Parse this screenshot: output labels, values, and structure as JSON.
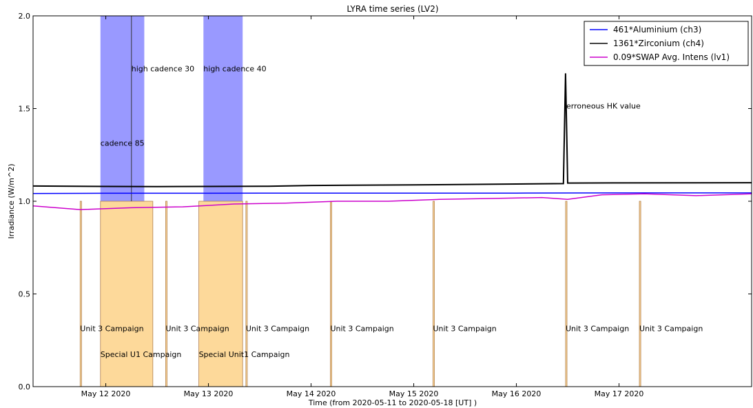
{
  "chart_data": {
    "type": "line",
    "title": "LYRA time series (LV2)",
    "xlabel": "Time (from 2020-05-11 to 2020-05-18 [UT] )",
    "ylabel": "Irradiance (W/m^2)",
    "xlim": [
      "2020-05-11T07:00",
      "2020-05-18T07:00"
    ],
    "ylim": [
      0,
      2.0
    ],
    "yticks": [
      0.0,
      0.5,
      1.0,
      1.5,
      2.0
    ],
    "ytick_labels": [
      "0.0",
      "0.5",
      "1.0",
      "1.5",
      "2.0"
    ],
    "xticks": [
      "2020-05-12T00:00",
      "2020-05-13T00:00",
      "2020-05-14T00:00",
      "2020-05-15T00:00",
      "2020-05-16T00:00",
      "2020-05-17T00:00"
    ],
    "xtick_labels": [
      "May 12 2020",
      "May 13 2020",
      "May 14 2020",
      "May 15 2020",
      "May 16 2020",
      "May 17 2020"
    ],
    "legend_position": "top-right",
    "grid": false,
    "series": [
      {
        "name": "461*Aluminium (ch3)",
        "color": "#0000ff",
        "x": [
          "2020-05-11T07:00",
          "2020-05-12T00:00",
          "2020-05-13T00:00",
          "2020-05-14T00:00",
          "2020-05-15T00:00",
          "2020-05-16T00:00",
          "2020-05-17T00:00",
          "2020-05-18T07:00"
        ],
        "y": [
          1.042,
          1.043,
          1.043,
          1.044,
          1.044,
          1.044,
          1.045,
          1.045
        ]
      },
      {
        "name": "1361*Zirconium (ch4)",
        "color": "#000000",
        "x": [
          "2020-05-11T07:00",
          "2020-05-12T00:00",
          "2020-05-12T12:00",
          "2020-05-13T00:00",
          "2020-05-13T14:00",
          "2020-05-14T00:00",
          "2020-05-15T00:00",
          "2020-05-16T00:00",
          "2020-05-16T11:00",
          "2020-05-16T11:30",
          "2020-05-16T12:00",
          "2020-05-17T00:00",
          "2020-05-18T07:00"
        ],
        "y": [
          1.082,
          1.08,
          1.079,
          1.08,
          1.081,
          1.085,
          1.088,
          1.093,
          1.095,
          1.69,
          1.098,
          1.099,
          1.1
        ]
      },
      {
        "name": "0.09*SWAP Avg. Intens (lv1)",
        "color": "#cc00cc",
        "x": [
          "2020-05-11T07:00",
          "2020-05-11T18:00",
          "2020-05-12T06:00",
          "2020-05-12T18:00",
          "2020-05-13T06:00",
          "2020-05-13T18:00",
          "2020-05-14T06:00",
          "2020-05-14T18:00",
          "2020-05-15T06:00",
          "2020-05-15T18:00",
          "2020-05-16T06:00",
          "2020-05-16T12:00",
          "2020-05-16T20:00",
          "2020-05-17T06:00",
          "2020-05-17T18:00",
          "2020-05-18T07:00"
        ],
        "y": [
          0.975,
          0.955,
          0.965,
          0.97,
          0.985,
          0.99,
          1.0,
          1.0,
          1.01,
          1.015,
          1.02,
          1.01,
          1.035,
          1.04,
          1.03,
          1.04
        ]
      }
    ],
    "spans": [
      {
        "kind": "high-cadence",
        "color": "#9999ff",
        "start": "2020-05-11T22:45",
        "end": "2020-05-12T09:00",
        "ymin": 1.0,
        "ymax": 2.0
      },
      {
        "kind": "high-cadence",
        "color": "#9999ff",
        "start": "2020-05-12T22:50",
        "end": "2020-05-13T08:00",
        "ymin": 1.0,
        "ymax": 2.0
      },
      {
        "kind": "campaign",
        "color": "#fdd99a",
        "start": "2020-05-11T18:00",
        "end": "2020-05-11T18:20",
        "ymin": 0.0,
        "ymax": 1.0
      },
      {
        "kind": "campaign",
        "color": "#fdd99a",
        "start": "2020-05-11T22:45",
        "end": "2020-05-12T11:00",
        "ymin": 0.0,
        "ymax": 1.0
      },
      {
        "kind": "campaign",
        "color": "#fdd99a",
        "start": "2020-05-12T14:00",
        "end": "2020-05-12T14:20",
        "ymin": 0.0,
        "ymax": 1.0
      },
      {
        "kind": "campaign",
        "color": "#fdd99a",
        "start": "2020-05-12T21:45",
        "end": "2020-05-13T08:00",
        "ymin": 0.0,
        "ymax": 1.0
      },
      {
        "kind": "campaign",
        "color": "#fdd99a",
        "start": "2020-05-13T08:45",
        "end": "2020-05-13T09:05",
        "ymin": 0.0,
        "ymax": 1.0
      },
      {
        "kind": "campaign",
        "color": "#fdd99a",
        "start": "2020-05-14T04:30",
        "end": "2020-05-14T04:50",
        "ymin": 0.0,
        "ymax": 1.0
      },
      {
        "kind": "campaign",
        "color": "#fdd99a",
        "start": "2020-05-15T04:30",
        "end": "2020-05-15T04:50",
        "ymin": 0.0,
        "ymax": 1.0
      },
      {
        "kind": "campaign",
        "color": "#fdd99a",
        "start": "2020-05-16T11:30",
        "end": "2020-05-16T11:50",
        "ymin": 0.0,
        "ymax": 1.0
      },
      {
        "kind": "campaign",
        "color": "#fdd99a",
        "start": "2020-05-17T04:45",
        "end": "2020-05-17T05:05",
        "ymin": 0.0,
        "ymax": 1.0
      }
    ],
    "markers": [
      {
        "x": "2020-05-12T06:00",
        "ymin": 1.0,
        "ymax": 2.0,
        "color": "#333333"
      }
    ],
    "annotations": [
      {
        "text": "high cadence 30",
        "x": "2020-05-12T06:00",
        "y": 1.7
      },
      {
        "text": "high cadence 40",
        "x": "2020-05-12T22:50",
        "y": 1.7
      },
      {
        "text": "cadence 85",
        "x": "2020-05-11T22:45",
        "y": 1.3
      },
      {
        "text": "erroneous HK value",
        "x": "2020-05-16T11:40",
        "y": 1.5
      },
      {
        "text": "Unit 3 Campaign",
        "x": "2020-05-11T18:00",
        "y": 0.3
      },
      {
        "text": "Unit 3 Campaign",
        "x": "2020-05-12T14:00",
        "y": 0.3
      },
      {
        "text": "Unit 3 Campaign",
        "x": "2020-05-13T08:45",
        "y": 0.3
      },
      {
        "text": "Unit 3 Campaign",
        "x": "2020-05-14T04:30",
        "y": 0.3
      },
      {
        "text": "Unit 3 Campaign",
        "x": "2020-05-15T04:30",
        "y": 0.3
      },
      {
        "text": "Unit 3 Campaign",
        "x": "2020-05-16T11:30",
        "y": 0.3
      },
      {
        "text": "Unit 3 Campaign",
        "x": "2020-05-17T04:45",
        "y": 0.3
      },
      {
        "text": "Special U1 Campaign",
        "x": "2020-05-11T22:45",
        "y": 0.16
      },
      {
        "text": "Special Unit1 Campaign",
        "x": "2020-05-12T21:45",
        "y": 0.16
      }
    ]
  }
}
